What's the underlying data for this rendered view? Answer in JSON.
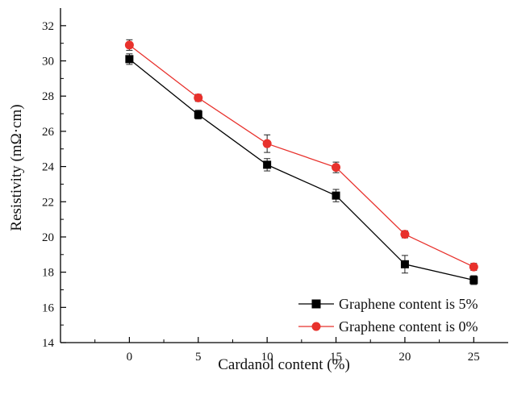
{
  "chart_data": {
    "type": "line",
    "title": "",
    "xlabel": "Cardanol content (%)",
    "ylabel": "Resistivity (mΩ·cm)",
    "x": [
      0,
      5,
      10,
      15,
      20,
      25
    ],
    "xlim": [
      -5,
      27.5
    ],
    "ylim": [
      14,
      33
    ],
    "xticks": [
      0,
      5,
      10,
      15,
      20,
      25
    ],
    "yticks": [
      14,
      16,
      18,
      20,
      22,
      24,
      26,
      28,
      30,
      32
    ],
    "grid": false,
    "legend_position": "bottom-right",
    "series": [
      {
        "name": "Graphene content is 5%",
        "color": "#000000",
        "marker": "square",
        "values": [
          30.1,
          26.95,
          24.1,
          22.35,
          18.45,
          17.55
        ],
        "errors": [
          0.3,
          0.25,
          0.35,
          0.35,
          0.5,
          0.25
        ]
      },
      {
        "name": "Graphene content is 0%",
        "color": "#e8312c",
        "marker": "circle",
        "values": [
          30.9,
          27.9,
          25.3,
          23.95,
          20.15,
          18.3
        ],
        "errors": [
          0.3,
          0.2,
          0.5,
          0.3,
          0.2,
          0.2
        ]
      }
    ]
  }
}
